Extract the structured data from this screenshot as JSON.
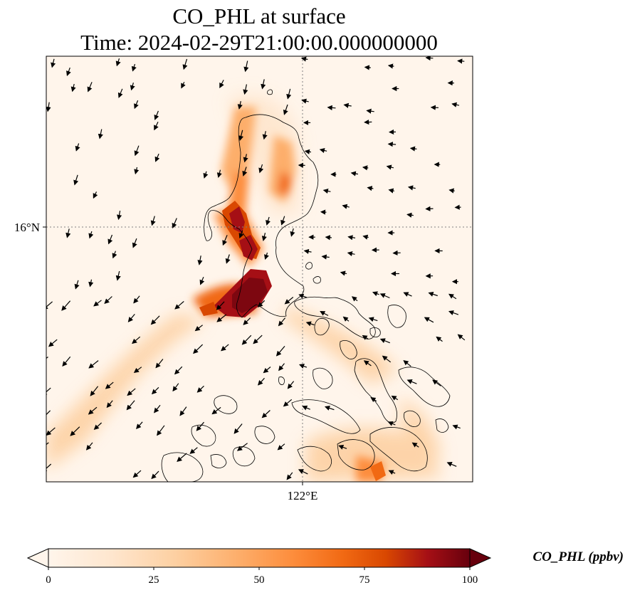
{
  "title": {
    "line1": "CO_PHL at surface",
    "line2": "Time: 2024-02-29T21:00:00.000000000"
  },
  "map": {
    "lat_tick": "16°N",
    "lon_tick": "122°E",
    "gridlines": "dotted",
    "coastlines": true,
    "wind_vectors": true
  },
  "colorbar": {
    "label": "CO_PHL (ppbv)",
    "ticks": [
      "0",
      "25",
      "50",
      "75",
      "100"
    ],
    "range": [
      0,
      100
    ],
    "extend": "both",
    "colormap": [
      "#fff5eb",
      "#fee6ce",
      "#fdd0a2",
      "#fdae6b",
      "#fd8d3c",
      "#f16913",
      "#d94801",
      "#a50f15",
      "#67000d"
    ]
  }
}
